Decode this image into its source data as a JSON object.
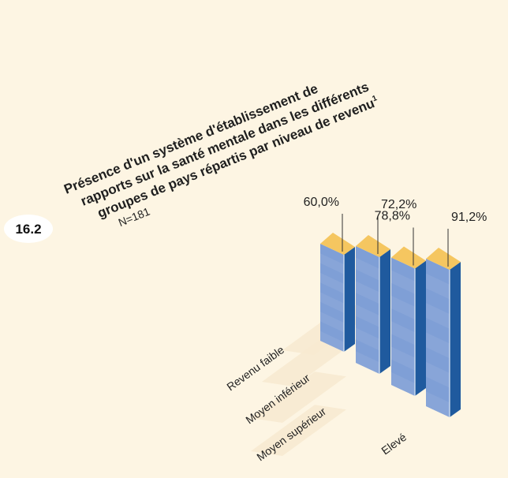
{
  "figure_number": "16.2",
  "title_lines": [
    "Présence d'un système d'établissement de",
    "rapports sur la santé mentale dans les différents",
    "groupes de pays répartis par niveau de revenu"
  ],
  "title_footnote": "1",
  "subtitle": "N=181",
  "colors": {
    "background": "#fdf5e3",
    "bar_front": "#7f9fd6",
    "bar_side": "#1f5a9e",
    "bar_top": "#f5c660",
    "label_band": "#f7ead0"
  },
  "chart_data": {
    "type": "bar",
    "title": "Présence d'un système d'établissement de rapports sur la santé mentale dans les différents groupes de pays répartis par niveau de revenu",
    "subtitle": "N=181",
    "categories": [
      "Revenu faible",
      "Moyen inférieur",
      "Moyen supérieur",
      "Elevé"
    ],
    "values": [
      60.0,
      72.2,
      78.8,
      91.2
    ],
    "value_labels": [
      "60,0%",
      "72,2%",
      "78,8%",
      "91,2%"
    ],
    "unit": "%",
    "ylim": [
      0,
      100
    ],
    "grid": false,
    "legend": "none"
  }
}
